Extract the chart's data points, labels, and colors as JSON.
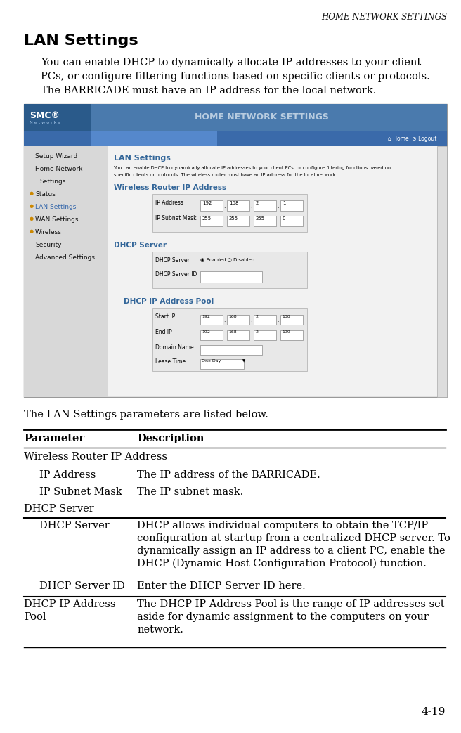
{
  "page_title": "HOME NETWORK SETTINGS",
  "section_title": "LAN Settings",
  "intro_line1": "You can enable DHCP to dynamically allocate IP addresses to your client",
  "intro_line2": "PCs, or configure filtering functions based on specific clients or protocols.",
  "intro_line3": "The BARRICADE must have an IP address for the local network.",
  "closing_text": "The LAN Settings parameters are listed below.",
  "page_number": "4-19",
  "table_header": [
    "Parameter",
    "Description"
  ],
  "bg_color": "#ffffff",
  "title_color": "#000000",
  "page_title_font": 8.5,
  "section_title_font": 14,
  "body_font": 10.5,
  "table_font": 10.0,
  "screenshot_bg": "#f0f0f0",
  "screenshot_border": "#888888",
  "header_blue": "#4a7aad",
  "header_dark_blue": "#2a5a8a",
  "nav_bar_blue": "#3a6aaa",
  "sidebar_gray": "#d8d8d8",
  "content_blue": "#336699",
  "form_gray": "#e0e0e0",
  "scrollbar_gray": "#cccccc",
  "nav_items": [
    "Setup Wizard",
    "Home Network",
    "Settings",
    "Status",
    "LAN Settings",
    "WAN Settings",
    "Wireless",
    "Security",
    "Advanced Settings"
  ],
  "nav_highlight": [
    false,
    false,
    false,
    false,
    true,
    false,
    false,
    false,
    false
  ],
  "nav_orange_dot": [
    false,
    false,
    false,
    true,
    true,
    true,
    true,
    false,
    false
  ]
}
